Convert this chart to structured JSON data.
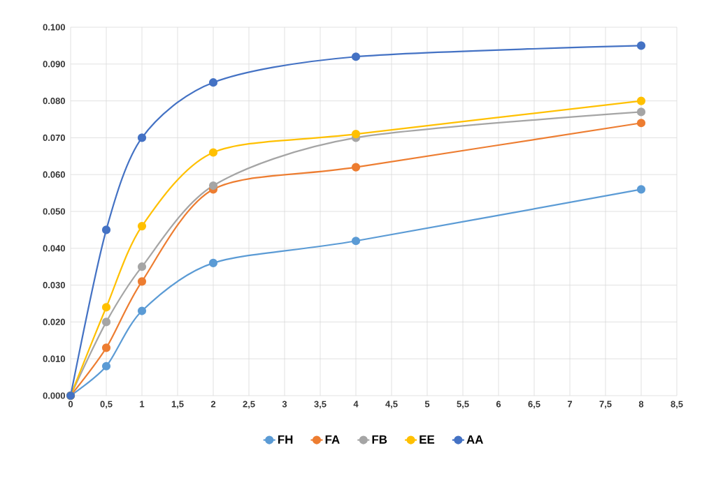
{
  "chart_data": {
    "type": "line",
    "x": [
      0,
      0.5,
      1,
      2,
      4,
      8
    ],
    "series": [
      {
        "name": "FH",
        "color": "#5b9bd5",
        "values": [
          0,
          0.008,
          0.023,
          0.036,
          0.042,
          0.056
        ]
      },
      {
        "name": "FA",
        "color": "#ed7d31",
        "values": [
          0,
          0.013,
          0.031,
          0.056,
          0.062,
          0.074
        ]
      },
      {
        "name": "FB",
        "color": "#a5a5a5",
        "values": [
          0,
          0.02,
          0.035,
          0.057,
          0.07,
          0.077
        ]
      },
      {
        "name": "EE",
        "color": "#ffc000",
        "values": [
          0,
          0.024,
          0.046,
          0.066,
          0.071,
          0.08
        ]
      },
      {
        "name": "AA",
        "color": "#4472c4",
        "values": [
          0,
          0.045,
          0.07,
          0.085,
          0.092,
          0.095
        ]
      }
    ],
    "xlim": [
      0,
      8.5
    ],
    "xticks": [
      {
        "value": 0,
        "label": "0"
      },
      {
        "value": 0.5,
        "label": "0,5"
      },
      {
        "value": 1,
        "label": "1"
      },
      {
        "value": 1.5,
        "label": "1,5"
      },
      {
        "value": 2,
        "label": "2"
      },
      {
        "value": 2.5,
        "label": "2,5"
      },
      {
        "value": 3,
        "label": "3"
      },
      {
        "value": 3.5,
        "label": "3,5"
      },
      {
        "value": 4,
        "label": "4"
      },
      {
        "value": 4.5,
        "label": "4,5"
      },
      {
        "value": 5,
        "label": "5"
      },
      {
        "value": 5.5,
        "label": "5,5"
      },
      {
        "value": 6,
        "label": "6"
      },
      {
        "value": 6.5,
        "label": "6,5"
      },
      {
        "value": 7,
        "label": "7"
      },
      {
        "value": 7.5,
        "label": "7,5"
      },
      {
        "value": 8,
        "label": "8"
      },
      {
        "value": 8.5,
        "label": "8,5"
      }
    ],
    "ylim": [
      0,
      0.1
    ],
    "yticks": [
      {
        "value": 0,
        "label": "0.000"
      },
      {
        "value": 0.01,
        "label": "0.010"
      },
      {
        "value": 0.02,
        "label": "0.020"
      },
      {
        "value": 0.03,
        "label": "0.030"
      },
      {
        "value": 0.04,
        "label": "0.040"
      },
      {
        "value": 0.05,
        "label": "0.050"
      },
      {
        "value": 0.06,
        "label": "0.060"
      },
      {
        "value": 0.07,
        "label": "0.070"
      },
      {
        "value": 0.08,
        "label": "0.080"
      },
      {
        "value": 0.09,
        "label": "0.090"
      },
      {
        "value": 0.1,
        "label": "0.100"
      }
    ],
    "grid": true,
    "legend": "bottom",
    "marker": "circle",
    "line_style": "solid"
  }
}
